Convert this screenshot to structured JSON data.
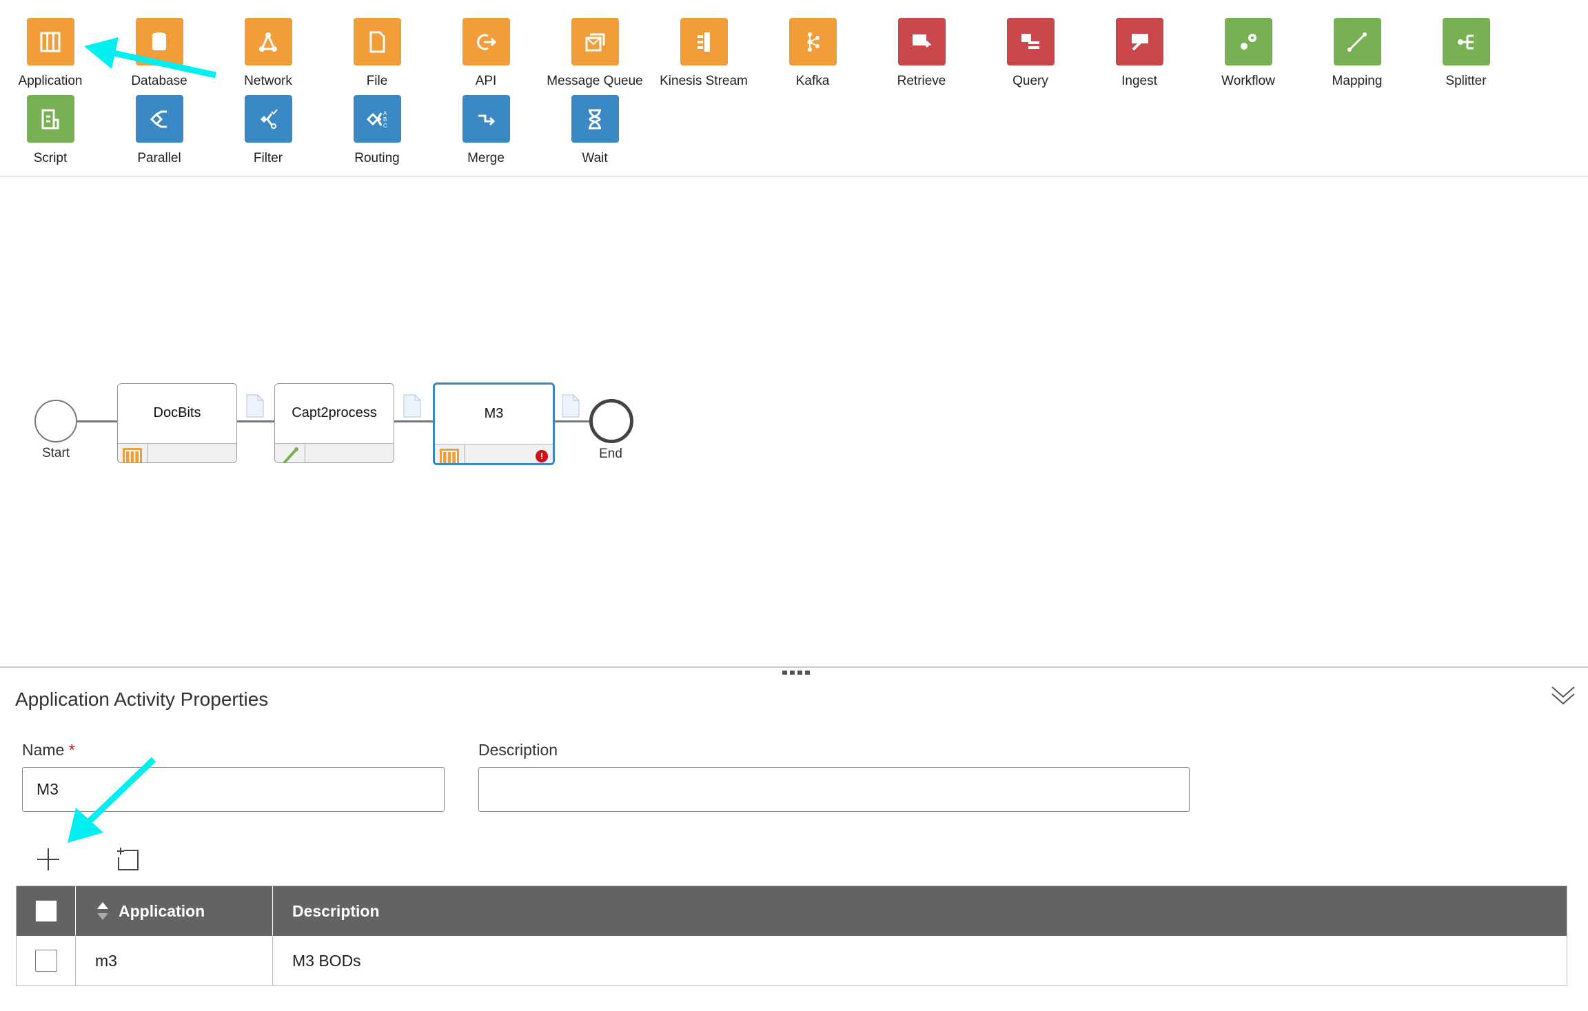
{
  "palette": {
    "items": [
      {
        "label": "Application",
        "icon": "application-icon",
        "color": "#f09d3a"
      },
      {
        "label": "Database",
        "icon": "database-icon",
        "color": "#f09d3a"
      },
      {
        "label": "Network",
        "icon": "network-icon",
        "color": "#f09d3a"
      },
      {
        "label": "File",
        "icon": "file-icon",
        "color": "#f09d3a"
      },
      {
        "label": "API",
        "icon": "api-icon",
        "color": "#f09d3a"
      },
      {
        "label": "Message Queue",
        "icon": "message-queue-icon",
        "color": "#f09d3a"
      },
      {
        "label": "Kinesis Stream",
        "icon": "kinesis-stream-icon",
        "color": "#f09d3a"
      },
      {
        "label": "Kafka",
        "icon": "kafka-icon",
        "color": "#f09d3a"
      },
      {
        "label": "Retrieve",
        "icon": "retrieve-icon",
        "color": "#c9474b"
      },
      {
        "label": "Query",
        "icon": "query-icon",
        "color": "#c9474b"
      },
      {
        "label": "Ingest",
        "icon": "ingest-icon",
        "color": "#c9474b"
      },
      {
        "label": "Workflow",
        "icon": "workflow-icon",
        "color": "#78b154"
      },
      {
        "label": "Mapping",
        "icon": "mapping-icon",
        "color": "#78b154"
      },
      {
        "label": "Splitter",
        "icon": "splitter-icon",
        "color": "#78b154"
      },
      {
        "label": "Script",
        "icon": "script-icon",
        "color": "#78b154"
      },
      {
        "label": "Parallel",
        "icon": "parallel-icon",
        "color": "#3a89c4"
      },
      {
        "label": "Filter",
        "icon": "filter-icon",
        "color": "#3a89c4"
      },
      {
        "label": "Routing",
        "icon": "routing-icon",
        "color": "#3a89c4"
      },
      {
        "label": "Merge",
        "icon": "merge-icon",
        "color": "#3a89c4"
      },
      {
        "label": "Wait",
        "icon": "wait-icon",
        "color": "#3a89c4"
      }
    ]
  },
  "flow": {
    "start_label": "Start",
    "end_label": "End",
    "nodes": [
      {
        "label": "DocBits",
        "type": "application"
      },
      {
        "label": "Capt2process",
        "type": "mapping"
      },
      {
        "label": "M3",
        "type": "application",
        "selected": true,
        "error": true
      }
    ]
  },
  "panel": {
    "title": "Application Activity Properties",
    "name_label": "Name",
    "required_mark": "*",
    "name_value": "M3",
    "description_label": "Description",
    "description_value": "",
    "table": {
      "headers": [
        "Application",
        "Description"
      ],
      "rows": [
        {
          "application": "m3",
          "description": "M3 BODs"
        }
      ]
    }
  },
  "annotation_color": "#00f0f0"
}
